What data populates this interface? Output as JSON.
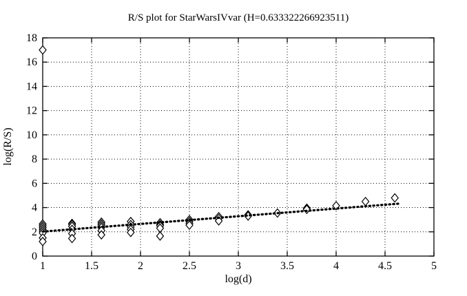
{
  "figure": {
    "background": "#ffffff",
    "foreground": "#000000"
  },
  "chart_data": {
    "type": "scatter",
    "title": "R/S plot for StarWarsIVvar (H=0.633322266923511)",
    "xlabel": "log(d)",
    "ylabel": "log(R/S)",
    "xlim": [
      1,
      5
    ],
    "ylim": [
      0,
      18
    ],
    "xticks": [
      1,
      1.5,
      2,
      2.5,
      3,
      3.5,
      4,
      4.5,
      5
    ],
    "yticks": [
      0,
      2,
      4,
      6,
      8,
      10,
      12,
      14,
      16,
      18
    ],
    "grid": "dotted",
    "legend": "none",
    "marker": "open-diamond",
    "hurst_exponent": 0.633322266923511,
    "points": [
      [
        1.0,
        17.0
      ],
      [
        1.0,
        2.65
      ],
      [
        1.0,
        2.5
      ],
      [
        1.0,
        2.35
      ],
      [
        1.0,
        2.2
      ],
      [
        1.0,
        2.05
      ],
      [
        1.0,
        1.9
      ],
      [
        1.0,
        1.5
      ],
      [
        1.0,
        1.2
      ],
      [
        1.3,
        2.7
      ],
      [
        1.3,
        2.6
      ],
      [
        1.3,
        2.45
      ],
      [
        1.3,
        2.2
      ],
      [
        1.3,
        1.85
      ],
      [
        1.3,
        1.45
      ],
      [
        1.6,
        2.8
      ],
      [
        1.6,
        2.65
      ],
      [
        1.6,
        2.5
      ],
      [
        1.6,
        2.35
      ],
      [
        1.6,
        2.1
      ],
      [
        1.6,
        1.75
      ],
      [
        1.9,
        2.85
      ],
      [
        1.9,
        2.6
      ],
      [
        1.9,
        2.4
      ],
      [
        1.9,
        2.2
      ],
      [
        1.9,
        1.95
      ],
      [
        2.2,
        2.75
      ],
      [
        2.2,
        2.6
      ],
      [
        2.2,
        2.5
      ],
      [
        2.2,
        2.3
      ],
      [
        2.2,
        1.65
      ],
      [
        2.5,
        3.0
      ],
      [
        2.5,
        2.85
      ],
      [
        2.5,
        2.7
      ],
      [
        2.5,
        2.55
      ],
      [
        2.8,
        3.25
      ],
      [
        2.8,
        3.1
      ],
      [
        2.8,
        2.9
      ],
      [
        3.1,
        3.4
      ],
      [
        3.1,
        3.3
      ],
      [
        3.4,
        3.55
      ],
      [
        3.7,
        3.95
      ],
      [
        3.7,
        3.85
      ],
      [
        4.0,
        4.15
      ],
      [
        4.3,
        4.5
      ],
      [
        4.6,
        4.8
      ]
    ],
    "trend_line": {
      "style": "bold-dotted",
      "x_start": 1.0,
      "y_start": 2.02,
      "x_end": 4.65,
      "y_end": 4.33
    }
  }
}
